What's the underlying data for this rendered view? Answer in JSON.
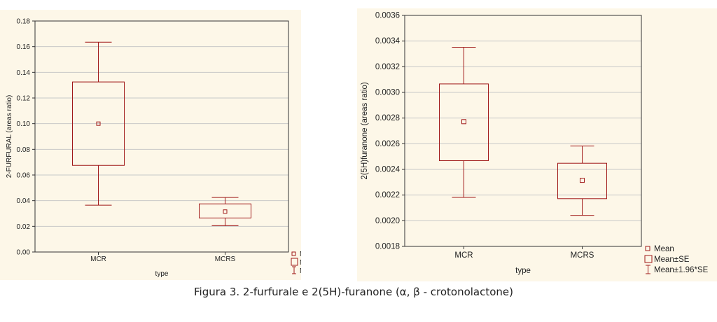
{
  "caption": "Figura 3. 2-furfurale e 2(5H)-furanone (α, β - crotonolactone)",
  "colors": {
    "series": "#a01818",
    "grid": "#c8c8c8",
    "background": "#fdf7e8"
  },
  "legend": {
    "mean": "Mean",
    "se": "Mean±SE",
    "ci": "Mean±1.96*SE"
  },
  "chart_data": [
    {
      "type": "box",
      "xlabel": "type",
      "ylabel": "2-FURFURAL (areas ratio)",
      "ylim": [
        0,
        0.18
      ],
      "yticks": [
        "0.00",
        "0.02",
        "0.04",
        "0.06",
        "0.08",
        "0.10",
        "0.12",
        "0.14",
        "0.16",
        "0.18"
      ],
      "grid": true,
      "legend_position": "bottom-right outside",
      "categories": [
        "MCR",
        "MCRS"
      ],
      "boxes": [
        {
          "category": "MCR",
          "mean": 0.1,
          "se_low": 0.0675,
          "se_high": 0.1325,
          "ci_low": 0.0365,
          "ci_high": 0.1635
        },
        {
          "category": "MCRS",
          "mean": 0.0315,
          "se_low": 0.0265,
          "se_high": 0.0375,
          "ci_low": 0.0205,
          "ci_high": 0.0425
        }
      ]
    },
    {
      "type": "box",
      "xlabel": "type",
      "ylabel": "2(5H)furanone (areas ratio)",
      "ylim": [
        0.0018,
        0.0036
      ],
      "yticks": [
        "0.0018",
        "0.0020",
        "0.0022",
        "0.0024",
        "0.0026",
        "0.0028",
        "0.0030",
        "0.0032",
        "0.0034",
        "0.0036"
      ],
      "grid": true,
      "legend_position": "bottom-right outside",
      "categories": [
        "MCR",
        "MCRS"
      ],
      "boxes": [
        {
          "category": "MCR",
          "mean": 0.002772,
          "se_low": 0.002468,
          "se_high": 0.003066,
          "ci_low": 0.002182,
          "ci_high": 0.003352
        },
        {
          "category": "MCRS",
          "mean": 0.002315,
          "se_low": 0.002172,
          "se_high": 0.002448,
          "ci_low": 0.002042,
          "ci_high": 0.002582
        }
      ]
    }
  ]
}
